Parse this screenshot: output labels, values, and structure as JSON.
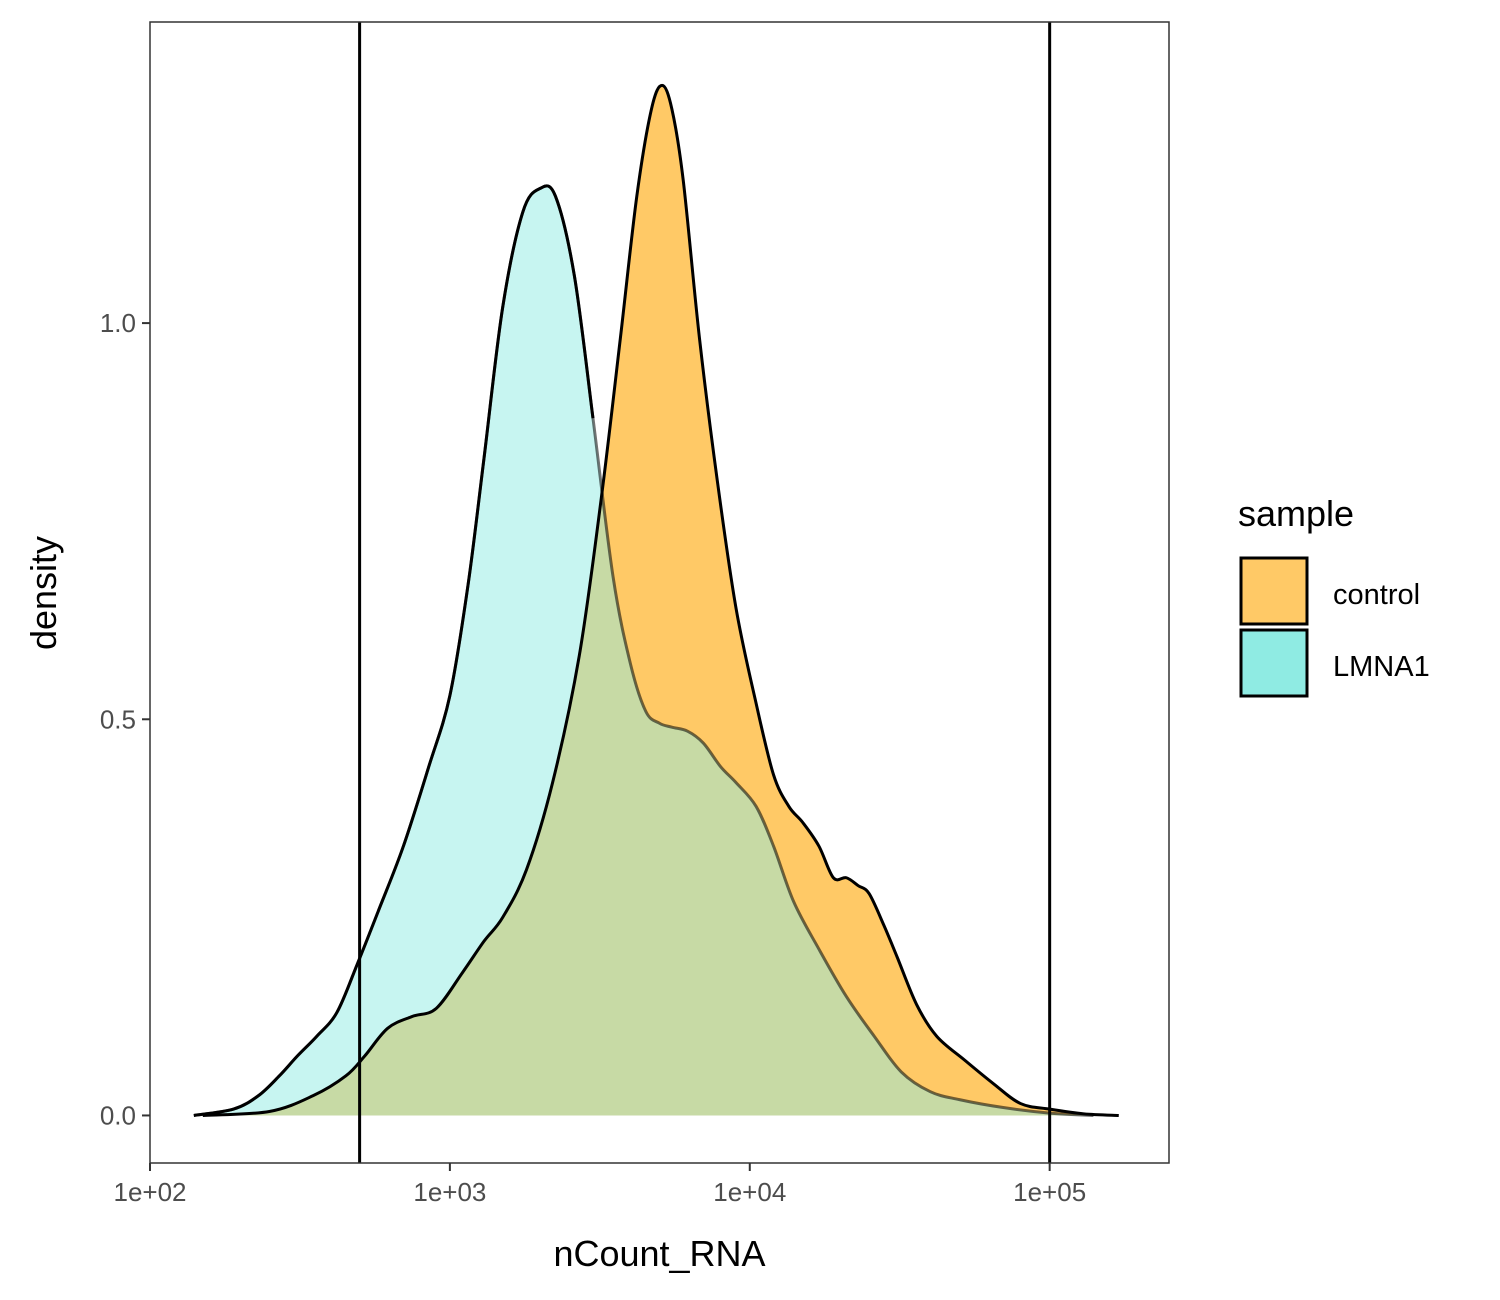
{
  "chart_data": {
    "type": "area",
    "subtype": "density",
    "xlabel": "nCount_RNA",
    "ylabel": "density",
    "x_scale": "log10",
    "xlim": [
      100,
      250000
    ],
    "ylim": [
      -0.06,
      1.38
    ],
    "x_ticks": [
      {
        "value": 100,
        "label": "1e+02"
      },
      {
        "value": 1000,
        "label": "1e+03"
      },
      {
        "value": 10000,
        "label": "1e+04"
      },
      {
        "value": 100000,
        "label": "1e+05"
      }
    ],
    "y_ticks": [
      {
        "value": 0,
        "label": "0.0"
      },
      {
        "value": 0.5,
        "label": "0.5"
      },
      {
        "value": 1.0,
        "label": "1.0"
      }
    ],
    "grid": false,
    "vlines": [
      500,
      100000
    ],
    "legend": {
      "title": "sample",
      "position": "right",
      "entries": [
        {
          "label": "control",
          "color": "#FFC966"
        },
        {
          "label": "LMNA1",
          "color": "#8FEBE3"
        }
      ]
    },
    "overlap_color": "#8FD6A5",
    "series": [
      {
        "name": "control",
        "color": "#FFC966",
        "points": [
          [
            150,
            0.0
          ],
          [
            250,
            0.005
          ],
          [
            350,
            0.025
          ],
          [
            450,
            0.05
          ],
          [
            520,
            0.075
          ],
          [
            620,
            0.11
          ],
          [
            750,
            0.125
          ],
          [
            900,
            0.135
          ],
          [
            1100,
            0.18
          ],
          [
            1300,
            0.22
          ],
          [
            1500,
            0.25
          ],
          [
            1800,
            0.31
          ],
          [
            2200,
            0.42
          ],
          [
            2700,
            0.58
          ],
          [
            3200,
            0.78
          ],
          [
            3700,
            0.98
          ],
          [
            4200,
            1.16
          ],
          [
            4700,
            1.27
          ],
          [
            5100,
            1.3
          ],
          [
            5500,
            1.27
          ],
          [
            6000,
            1.18
          ],
          [
            6800,
            0.98
          ],
          [
            7800,
            0.8
          ],
          [
            9000,
            0.64
          ],
          [
            10500,
            0.52
          ],
          [
            12000,
            0.43
          ],
          [
            13500,
            0.39
          ],
          [
            15000,
            0.37
          ],
          [
            17000,
            0.34
          ],
          [
            19000,
            0.3
          ],
          [
            21000,
            0.3
          ],
          [
            23000,
            0.29
          ],
          [
            25000,
            0.28
          ],
          [
            28000,
            0.24
          ],
          [
            31000,
            0.2
          ],
          [
            36000,
            0.14
          ],
          [
            42000,
            0.1
          ],
          [
            52000,
            0.07
          ],
          [
            65000,
            0.04
          ],
          [
            80000,
            0.015
          ],
          [
            100000,
            0.008
          ],
          [
            130000,
            0.002
          ],
          [
            170000,
            0.0
          ]
        ]
      },
      {
        "name": "LMNA1",
        "color": "#8FEBE3",
        "points": [
          [
            140,
            0.0
          ],
          [
            190,
            0.008
          ],
          [
            230,
            0.025
          ],
          [
            270,
            0.05
          ],
          [
            310,
            0.075
          ],
          [
            360,
            0.1
          ],
          [
            420,
            0.13
          ],
          [
            490,
            0.19
          ],
          [
            580,
            0.26
          ],
          [
            700,
            0.34
          ],
          [
            850,
            0.44
          ],
          [
            1000,
            0.53
          ],
          [
            1150,
            0.67
          ],
          [
            1300,
            0.83
          ],
          [
            1500,
            1.02
          ],
          [
            1750,
            1.14
          ],
          [
            2000,
            1.17
          ],
          [
            2250,
            1.16
          ],
          [
            2600,
            1.06
          ],
          [
            3000,
            0.88
          ],
          [
            3500,
            0.68
          ],
          [
            4000,
            0.57
          ],
          [
            4500,
            0.51
          ],
          [
            5000,
            0.495
          ],
          [
            5500,
            0.49
          ],
          [
            6200,
            0.485
          ],
          [
            7000,
            0.47
          ],
          [
            8000,
            0.44
          ],
          [
            9000,
            0.42
          ],
          [
            10500,
            0.39
          ],
          [
            12000,
            0.34
          ],
          [
            14000,
            0.27
          ],
          [
            17000,
            0.21
          ],
          [
            21000,
            0.15
          ],
          [
            26000,
            0.1
          ],
          [
            32000,
            0.055
          ],
          [
            40000,
            0.03
          ],
          [
            50000,
            0.02
          ],
          [
            70000,
            0.01
          ],
          [
            100000,
            0.003
          ],
          [
            140000,
            0.0
          ]
        ]
      }
    ]
  }
}
